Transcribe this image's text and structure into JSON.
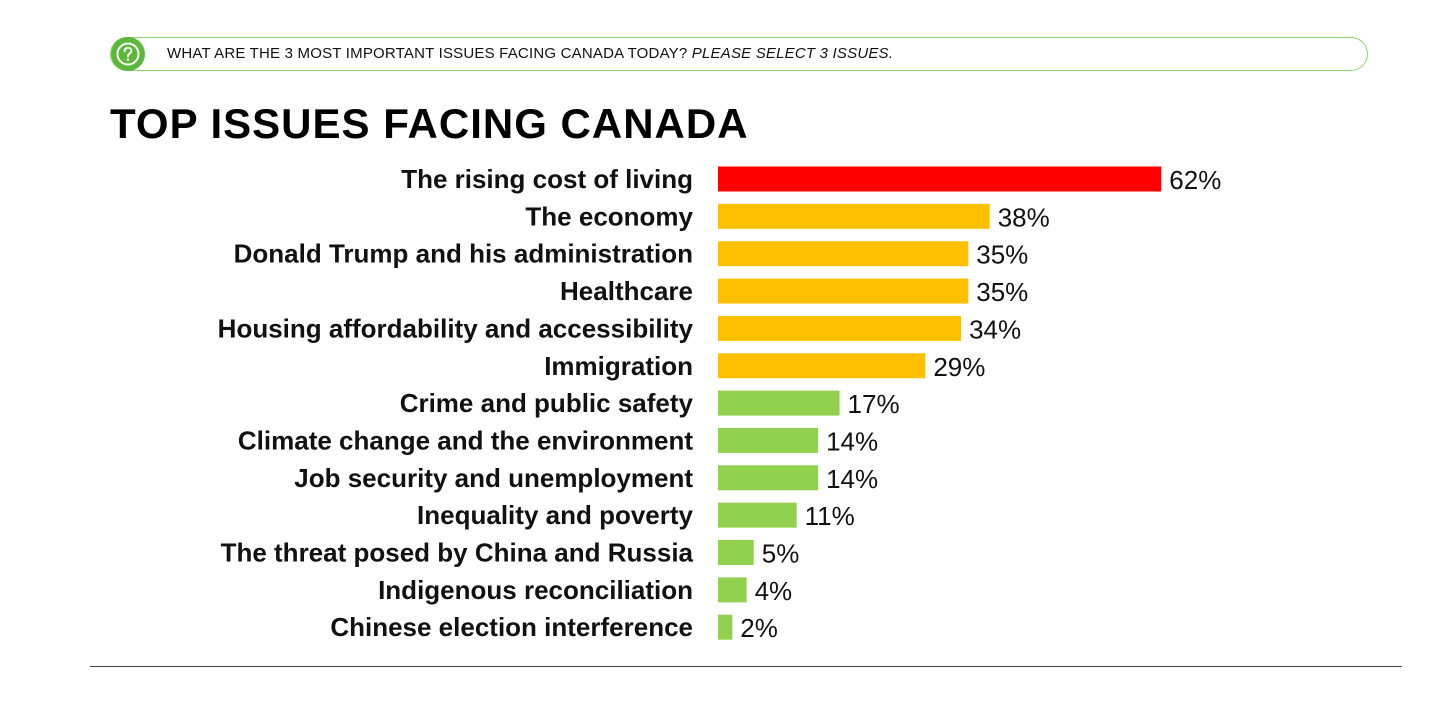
{
  "question": {
    "text": "WHAT ARE THE 3 MOST IMPORTANT ISSUES FACING CANADA TODAY?",
    "instruction": "PLEASE SELECT 3 ISSUES."
  },
  "colors": {
    "high": "#ff0000",
    "medium": "#ffc000",
    "low": "#92d050",
    "accent_green": "#5cb83b"
  },
  "chart_data": {
    "type": "bar",
    "orientation": "horizontal",
    "title": "TOP ISSUES FACING CANADA",
    "xlabel": "",
    "ylabel": "",
    "xlim": [
      0,
      100
    ],
    "categories": [
      "The rising cost of living",
      "The economy",
      "Donald Trump and his administration",
      "Healthcare",
      "Housing affordability and accessibility",
      "Immigration",
      "Crime and public safety",
      "Climate change and the environment",
      "Job security and unemployment",
      "Inequality and poverty",
      "The threat posed by China and Russia",
      "Indigenous reconciliation",
      "Chinese election interference"
    ],
    "values": [
      62,
      38,
      35,
      35,
      34,
      29,
      17,
      14,
      14,
      11,
      5,
      4,
      2
    ],
    "value_labels": [
      "62%",
      "38%",
      "35%",
      "35%",
      "34%",
      "29%",
      "17%",
      "14%",
      "14%",
      "11%",
      "5%",
      "4%",
      "2%"
    ],
    "bar_colors": [
      "#ff0000",
      "#ffc000",
      "#ffc000",
      "#ffc000",
      "#ffc000",
      "#ffc000",
      "#92d050",
      "#92d050",
      "#92d050",
      "#92d050",
      "#92d050",
      "#92d050",
      "#92d050"
    ]
  }
}
